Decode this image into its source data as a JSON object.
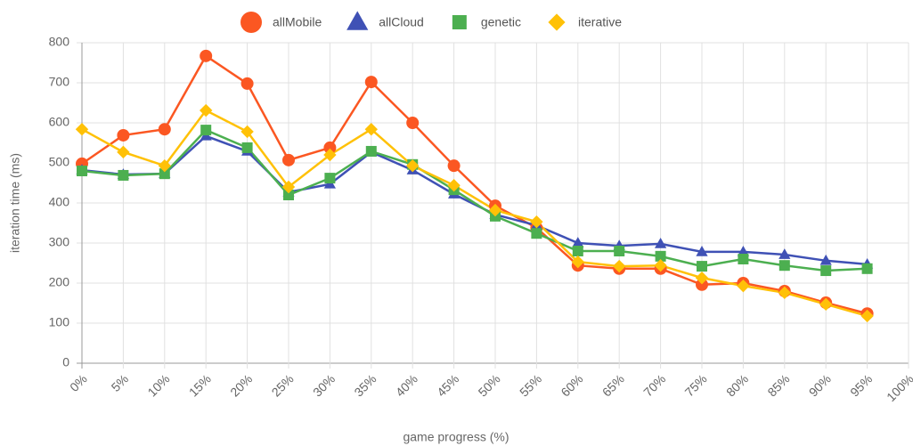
{
  "chart_data": {
    "type": "line",
    "x_label": "game progress (%)",
    "y_label": "iteration time (ms)",
    "categories": [
      "0%",
      "5%",
      "10%",
      "15%",
      "20%",
      "25%",
      "30%",
      "35%",
      "40%",
      "45%",
      "50%",
      "55%",
      "60%",
      "65%",
      "70%",
      "75%",
      "80%",
      "85%",
      "90%",
      "95%",
      "100%"
    ],
    "ylim": [
      0,
      800
    ],
    "yticks": [
      0,
      100,
      200,
      300,
      400,
      500,
      600,
      700,
      800
    ],
    "grid": true,
    "legend": "top",
    "series": [
      {
        "name": "allMobile",
        "color": "#fb5722",
        "marker": "circle",
        "values": [
          498,
          569,
          584,
          767,
          698,
          507,
          538,
          702,
          600,
          493,
          393,
          338,
          244,
          236,
          236,
          196,
          200,
          180,
          151,
          124,
          null
        ]
      },
      {
        "name": "allCloud",
        "color": "#3f51b5",
        "marker": "triangle",
        "values": [
          482,
          471,
          473,
          567,
          529,
          427,
          447,
          527,
          482,
          422,
          371,
          344,
          300,
          293,
          298,
          278,
          278,
          271,
          256,
          247,
          null
        ]
      },
      {
        "name": "genetic",
        "color": "#4caf50",
        "marker": "square",
        "values": [
          480,
          469,
          473,
          582,
          538,
          420,
          462,
          529,
          496,
          433,
          367,
          324,
          280,
          280,
          267,
          242,
          260,
          244,
          231,
          236,
          null
        ]
      },
      {
        "name": "iterative",
        "color": "#ffc107",
        "marker": "diamond",
        "values": [
          584,
          527,
          493,
          631,
          578,
          440,
          520,
          584,
          493,
          444,
          382,
          353,
          253,
          242,
          244,
          213,
          193,
          176,
          147,
          118,
          null
        ]
      }
    ]
  }
}
